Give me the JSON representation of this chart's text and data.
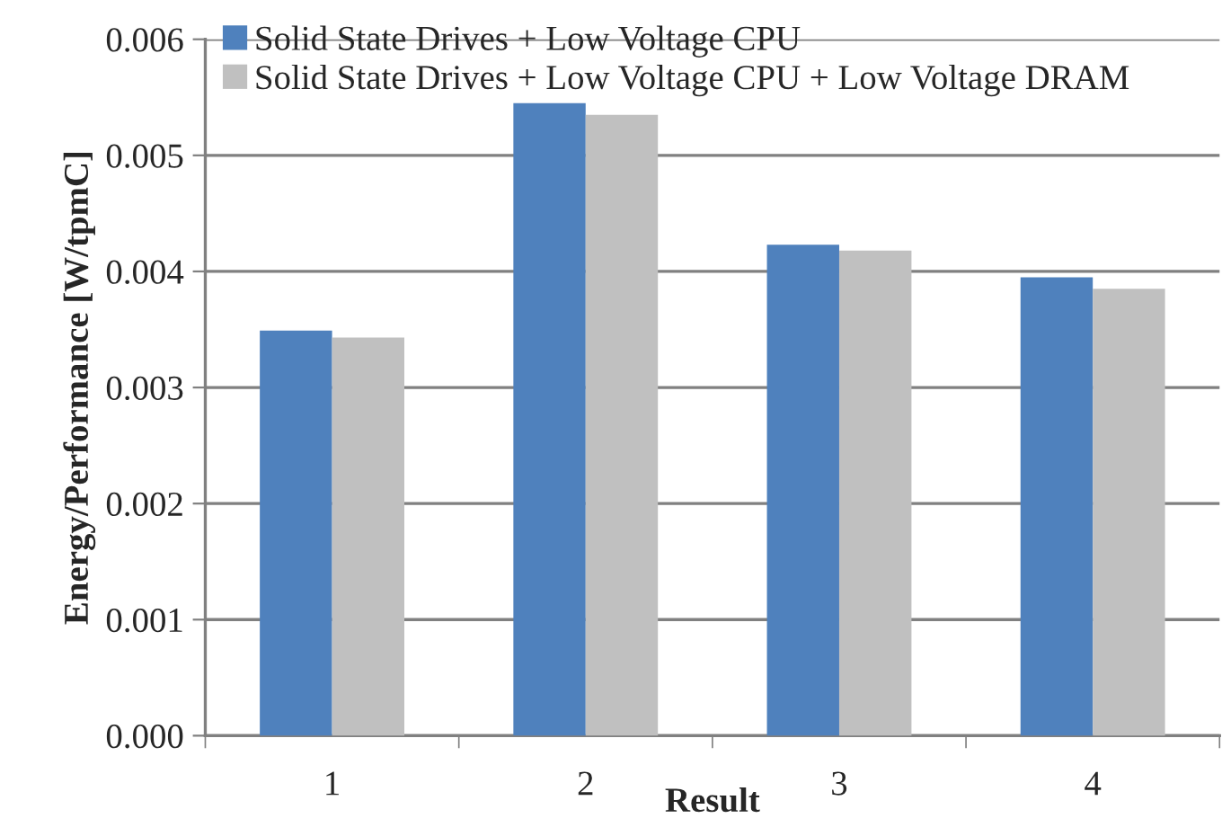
{
  "chart_data": {
    "type": "bar",
    "xlabel": "Result",
    "ylabel": "Energy/Performance [W/tpmC]",
    "categories": [
      "1",
      "2",
      "3",
      "4"
    ],
    "series": [
      {
        "name": "Solid State Drives + Low Voltage CPU",
        "color": "#4f81bd",
        "values": [
          0.00349,
          0.00545,
          0.00423,
          0.00395
        ]
      },
      {
        "name": "Solid State Drives + Low Voltage CPU + Low Voltage DRAM",
        "color": "#c0c0c0",
        "values": [
          0.00343,
          0.00535,
          0.00418,
          0.00385
        ]
      }
    ],
    "ylim": [
      0,
      0.006
    ],
    "yticks": [
      {
        "value": 0,
        "label": "0.000"
      },
      {
        "value": 0.001,
        "label": "0.001"
      },
      {
        "value": 0.002,
        "label": "0.002"
      },
      {
        "value": 0.003,
        "label": "0.003"
      },
      {
        "value": 0.004,
        "label": "0.004"
      },
      {
        "value": 0.005,
        "label": "0.005"
      },
      {
        "value": 0.006,
        "label": "0.006"
      }
    ],
    "grid": "y",
    "legend": "top left"
  }
}
